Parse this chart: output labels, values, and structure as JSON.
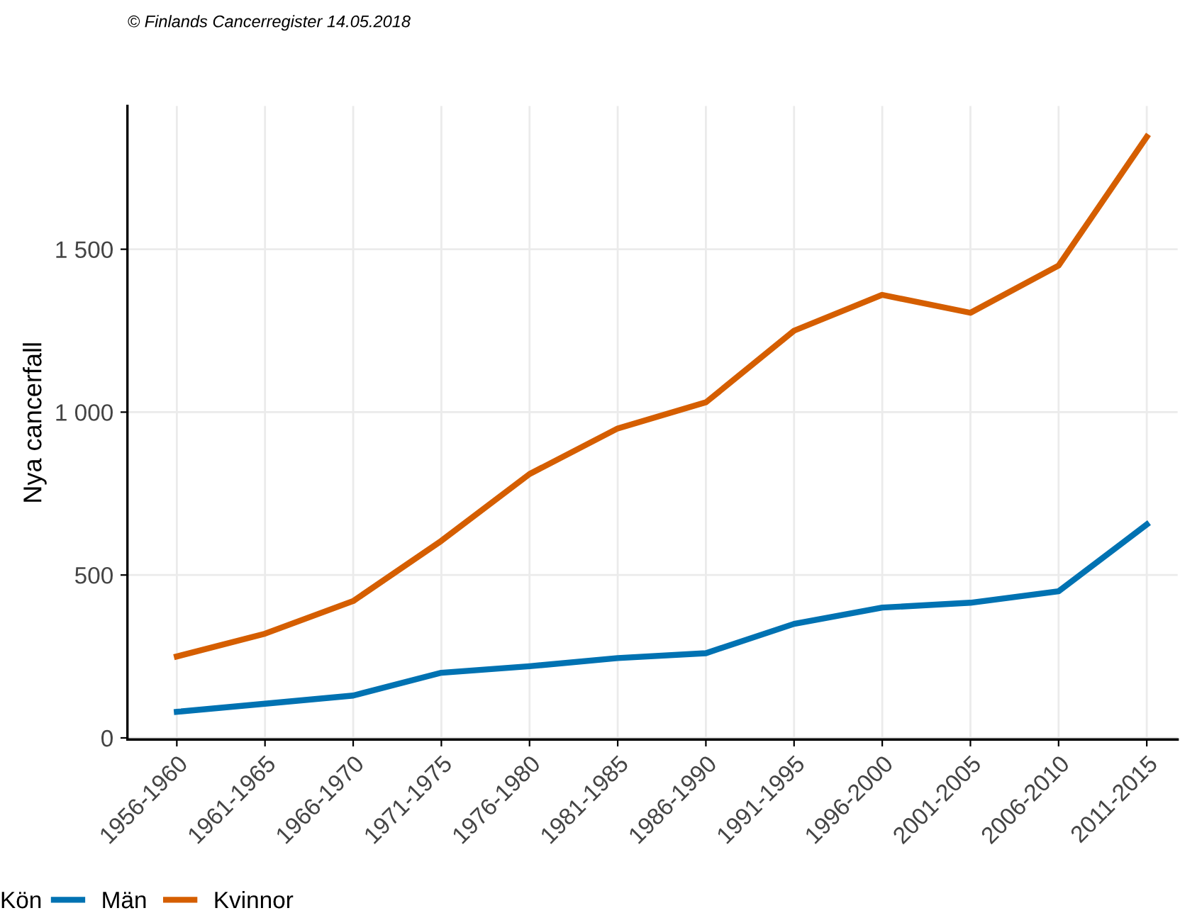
{
  "chart_data": {
    "type": "line",
    "ylabel": "Nya cancerfall",
    "legend_title": "Kön",
    "annotations": [
      "© Finlands Cancerregister 14.05.2018"
    ],
    "categories": [
      "1956-1960",
      "1961-1965",
      "1966-1970",
      "1971-1975",
      "1976-1980",
      "1981-1985",
      "1986-1990",
      "1991-1995",
      "1996-2000",
      "2001-2005",
      "2006-2010",
      "2011-2015"
    ],
    "series": [
      {
        "name": "Män",
        "color": "#0072b2",
        "values": [
          80,
          105,
          130,
          200,
          220,
          245,
          260,
          350,
          400,
          415,
          450,
          655
        ]
      },
      {
        "name": "Kvinnor",
        "color": "#d55e00",
        "values": [
          250,
          320,
          420,
          605,
          810,
          950,
          1030,
          1250,
          1360,
          1305,
          1450,
          1845
        ]
      }
    ],
    "ylim": [
      -5,
      1940
    ],
    "yticks": [
      0,
      500,
      {
        "value": 1000,
        "label": "1 000"
      },
      {
        "value": 1500,
        "label": "1 500"
      }
    ],
    "grid": true,
    "legend": "bottom",
    "line_style": "solid",
    "marker": "none"
  }
}
